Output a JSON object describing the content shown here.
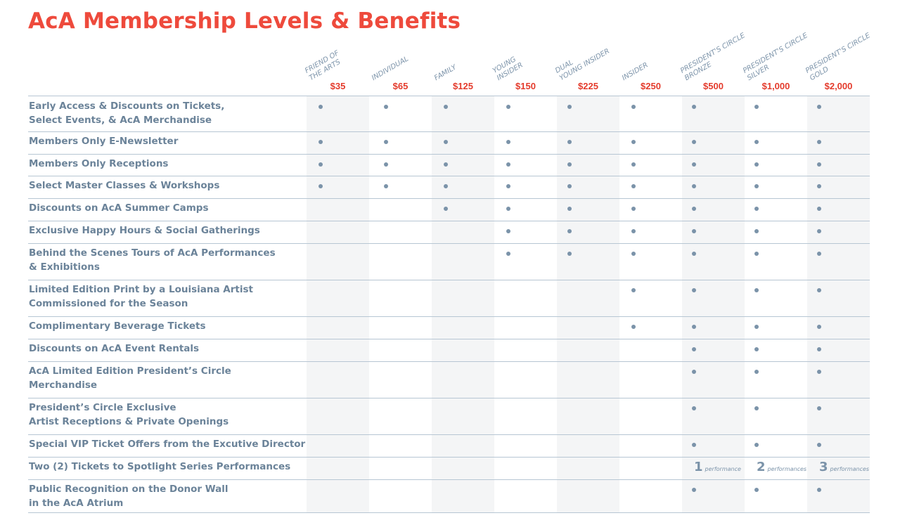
{
  "title": "AcA Membership Levels & Benefits",
  "tiers": [
    {
      "name_lines": [
        "FRIEND OF",
        "THE ARTS"
      ],
      "price": "$35"
    },
    {
      "name_lines": [
        "INDIVIDUAL"
      ],
      "price": "$65"
    },
    {
      "name_lines": [
        "FAMILY"
      ],
      "price": "$125"
    },
    {
      "name_lines": [
        "YOUNG",
        "INSIDER"
      ],
      "price": "$150"
    },
    {
      "name_lines": [
        "DUAL",
        "YOUNG INSIDER"
      ],
      "price": "$225"
    },
    {
      "name_lines": [
        "INSIDER"
      ],
      "price": "$250"
    },
    {
      "name_lines": [
        "PRESIDENT'S CIRCLE",
        "BRONZE"
      ],
      "price": "$500"
    },
    {
      "name_lines": [
        "PRESIDENT'S CIRCLE",
        "SILVER"
      ],
      "price": "$1,000"
    },
    {
      "name_lines": [
        "PRESIDENT'S CIRCLE",
        "GOLD"
      ],
      "price": "$2,000"
    }
  ],
  "benefits": [
    {
      "label_lines": [
        "Early Access & Discounts on Tickets,",
        "Select Events, & AcA Merchandise"
      ],
      "marks": [
        1,
        1,
        1,
        1,
        1,
        1,
        1,
        1,
        1
      ]
    },
    {
      "label_lines": [
        "Members Only E-Newsletter"
      ],
      "marks": [
        1,
        1,
        1,
        1,
        1,
        1,
        1,
        1,
        1
      ]
    },
    {
      "label_lines": [
        "Members Only Receptions"
      ],
      "marks": [
        1,
        1,
        1,
        1,
        1,
        1,
        1,
        1,
        1
      ]
    },
    {
      "label_lines": [
        "Select Master Classes & Workshops"
      ],
      "marks": [
        1,
        1,
        1,
        1,
        1,
        1,
        1,
        1,
        1
      ]
    },
    {
      "label_lines": [
        "Discounts on AcA Summer Camps"
      ],
      "marks": [
        0,
        0,
        1,
        1,
        1,
        1,
        1,
        1,
        1
      ]
    },
    {
      "label_lines": [
        "Exclusive Happy Hours & Social Gatherings"
      ],
      "marks": [
        0,
        0,
        0,
        1,
        1,
        1,
        1,
        1,
        1
      ]
    },
    {
      "label_lines": [
        "Behind the Scenes Tours of AcA Performances",
        "& Exhibitions"
      ],
      "marks": [
        0,
        0,
        0,
        1,
        1,
        1,
        1,
        1,
        1
      ]
    },
    {
      "label_lines": [
        "Limited Edition Print by a Louisiana Artist",
        "Commissioned for the Season"
      ],
      "marks": [
        0,
        0,
        0,
        0,
        0,
        1,
        1,
        1,
        1
      ]
    },
    {
      "label_lines": [
        "Complimentary Beverage Tickets"
      ],
      "marks": [
        0,
        0,
        0,
        0,
        0,
        1,
        1,
        1,
        1
      ]
    },
    {
      "label_lines": [
        "Discounts on AcA Event Rentals"
      ],
      "marks": [
        0,
        0,
        0,
        0,
        0,
        0,
        1,
        1,
        1
      ]
    },
    {
      "label_lines": [
        "AcA Limited Edition President’s Circle",
        "Merchandise"
      ],
      "marks": [
        0,
        0,
        0,
        0,
        0,
        0,
        1,
        1,
        1
      ]
    },
    {
      "label_lines": [
        "President’s Circle Exclusive",
        "Artist Receptions & Private Openings"
      ],
      "marks": [
        0,
        0,
        0,
        0,
        0,
        0,
        1,
        1,
        1
      ]
    },
    {
      "label_lines": [
        "Special VIP Ticket Offers from the Excutive Director"
      ],
      "marks": [
        0,
        0,
        0,
        0,
        0,
        0,
        1,
        1,
        1
      ]
    },
    {
      "label_lines": [
        "Two (2) Tickets to Spotlight Series Performances"
      ],
      "marks": [
        0,
        0,
        0,
        0,
        0,
        0,
        {
          "n": "1",
          "word": "performance"
        },
        {
          "n": "2",
          "word": "performances"
        },
        {
          "n": "3",
          "word": "performances"
        }
      ]
    },
    {
      "label_lines": [
        "Public Recognition on the Donor Wall",
        "in the AcA Atrium"
      ],
      "marks": [
        0,
        0,
        0,
        0,
        0,
        0,
        1,
        1,
        1
      ]
    }
  ]
}
